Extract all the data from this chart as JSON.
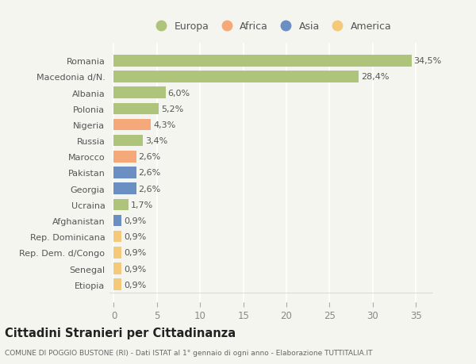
{
  "categories": [
    "Etiopia",
    "Senegal",
    "Rep. Dem. d/Congo",
    "Rep. Dominicana",
    "Afghanistan",
    "Ucraina",
    "Georgia",
    "Pakistan",
    "Marocco",
    "Russia",
    "Nigeria",
    "Polonia",
    "Albania",
    "Macedonia d/N.",
    "Romania"
  ],
  "values": [
    0.9,
    0.9,
    0.9,
    0.9,
    0.9,
    1.7,
    2.6,
    2.6,
    2.6,
    3.4,
    4.3,
    5.2,
    6.0,
    28.4,
    34.5
  ],
  "colors": [
    "#f5c97a",
    "#f5c97a",
    "#f5c97a",
    "#f5c97a",
    "#6b8fc2",
    "#adc47a",
    "#6b8fc2",
    "#6b8fc2",
    "#f5a87a",
    "#adc47a",
    "#f5a87a",
    "#adc47a",
    "#adc47a",
    "#adc47a",
    "#adc47a"
  ],
  "labels": [
    "0,9%",
    "0,9%",
    "0,9%",
    "0,9%",
    "0,9%",
    "1,7%",
    "2,6%",
    "2,6%",
    "2,6%",
    "3,4%",
    "4,3%",
    "5,2%",
    "6,0%",
    "28,4%",
    "34,5%"
  ],
  "legend_labels": [
    "Europa",
    "Africa",
    "Asia",
    "America"
  ],
  "legend_colors": [
    "#adc47a",
    "#f5a87a",
    "#6b8fc2",
    "#f5c97a"
  ],
  "title": "Cittadini Stranieri per Cittadinanza",
  "subtitle": "COMUNE DI POGGIO BUSTONE (RI) - Dati ISTAT al 1° gennaio di ogni anno - Elaborazione TUTTITALIA.IT",
  "background_color": "#f5f5f0",
  "xlim": [
    -0.5,
    37
  ],
  "xticks": [
    0,
    5,
    10,
    15,
    20,
    25,
    30,
    35
  ],
  "grid_color": "#ffffff",
  "bar_height": 0.72,
  "label_fontsize": 8,
  "ytick_fontsize": 8,
  "xtick_fontsize": 8.5
}
